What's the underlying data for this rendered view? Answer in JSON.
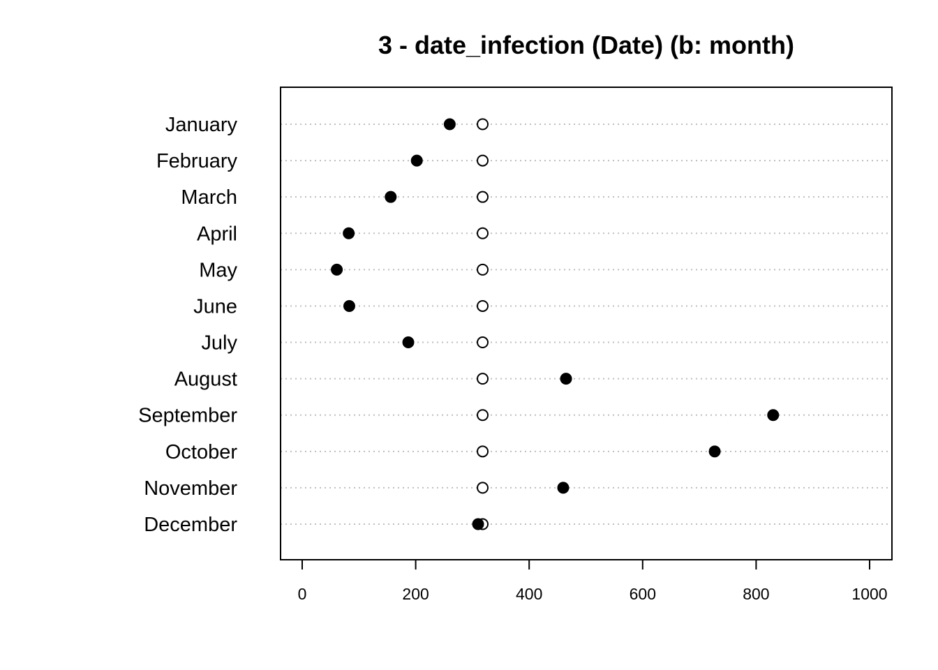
{
  "chart_data": {
    "type": "scatter",
    "subtype": "dotchart",
    "title": "3 - date_infection (Date) (b: month)",
    "xlabel": "",
    "ylabel": "",
    "xlim": [
      -40,
      1040
    ],
    "x_ticks": [
      0,
      200,
      400,
      600,
      800,
      1000
    ],
    "x_tick_labels": [
      "0",
      "200",
      "400",
      "600",
      "800",
      "1000"
    ],
    "grid": "dotted horizontal lines per category",
    "legend": "none",
    "categories": [
      "January",
      "February",
      "March",
      "April",
      "May",
      "June",
      "July",
      "August",
      "September",
      "October",
      "November",
      "December"
    ],
    "series": [
      {
        "marker": "filled-circle",
        "color": "#000000",
        "values": [
          260,
          202,
          156,
          82,
          61,
          83,
          187,
          465,
          830,
          727,
          460,
          310
        ]
      },
      {
        "marker": "open-circle",
        "color": "#000000",
        "values": [
          318,
          318,
          318,
          318,
          318,
          318,
          318,
          318,
          318,
          318,
          318,
          318
        ]
      }
    ]
  }
}
